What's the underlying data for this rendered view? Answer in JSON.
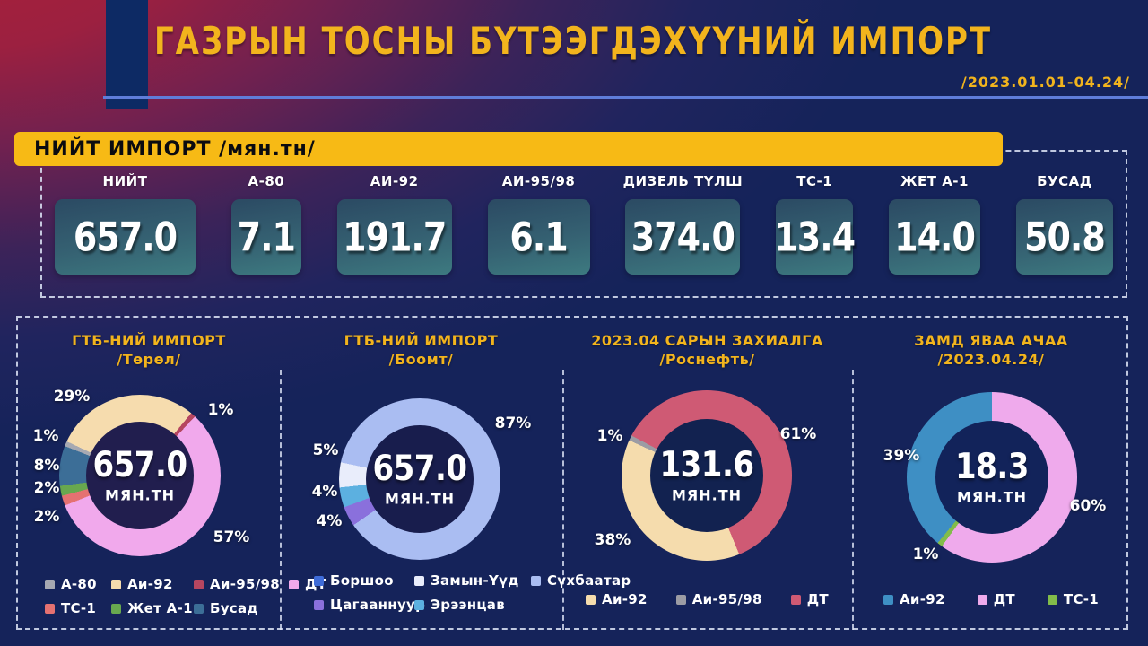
{
  "header": {
    "title": "ГАЗРЫН ТОСНЫ БҮТЭЭГДЭХҮҮНИЙ ИМПОРТ",
    "period": "/2023.01.01-04.24/",
    "accent_color": "#f2b41d"
  },
  "banner": {
    "label": "НИЙТ ИМПОРТ /мян.тн/",
    "background": "#f7ba15"
  },
  "stats": [
    {
      "label": "НИЙТ",
      "value": "657.0"
    },
    {
      "label": "А-80",
      "value": "7.1"
    },
    {
      "label": "АИ-92",
      "value": "191.7"
    },
    {
      "label": "АИ-95/98",
      "value": "6.1"
    },
    {
      "label": "ДИЗЕЛЬ ТҮЛШ",
      "value": "374.0"
    },
    {
      "label": "ТС-1",
      "value": "13.4"
    },
    {
      "label": "ЖЕТ А-1",
      "value": "14.0"
    },
    {
      "label": "БУСАД",
      "value": "50.8"
    }
  ],
  "chart_data": [
    {
      "type": "pie",
      "title": "ГТБ-НИЙ ИМПОРТ",
      "subtitle": "/Төрөл/",
      "center_value": "657.0",
      "center_unit": "МЯН.ТН",
      "start_angle_deg": -65,
      "slices": [
        {
          "label": "Аи-92",
          "pct": 29,
          "color": "#f6dcae"
        },
        {
          "label": "Аи-95/98",
          "pct": 1,
          "color": "#b64660"
        },
        {
          "label": "ДТ",
          "pct": 57,
          "color": "#f1a9ec"
        },
        {
          "label": "ТС-1",
          "pct": 2,
          "color": "#e57171"
        },
        {
          "label": "Жет А-1",
          "pct": 2,
          "color": "#68a84f"
        },
        {
          "label": "Бусад",
          "pct": 8,
          "color": "#3c6e97"
        },
        {
          "label": "А-80",
          "pct": 1,
          "color": "#a7a9b2"
        }
      ],
      "legend": [
        {
          "label": "А-80",
          "color": "#a7a9b2"
        },
        {
          "label": "Аи-92",
          "color": "#f6dcae"
        },
        {
          "label": "Аи-95/98",
          "color": "#b64660"
        },
        {
          "label": "ДТ",
          "color": "#f1a9ec"
        },
        {
          "label": "ТС-1",
          "color": "#e57171"
        },
        {
          "label": "Жет А-1",
          "color": "#68a84f"
        },
        {
          "label": "Бусад",
          "color": "#3c6e97"
        }
      ]
    },
    {
      "type": "pie",
      "title": "ГТБ-НИЙ ИМПОРТ",
      "subtitle": "/Боомт/",
      "center_value": "657.0",
      "center_unit": "МЯН.ТН",
      "start_angle_deg": -78,
      "slices": [
        {
          "label": "Сүхбаатар",
          "pct": 87,
          "color": "#aabdf2"
        },
        {
          "label": "Цагааннуур",
          "pct": 4,
          "color": "#8a70dc"
        },
        {
          "label": "Эрээнцав",
          "pct": 4,
          "color": "#5cb0e0"
        },
        {
          "label": "Замын-Үүд",
          "pct": 5,
          "color": "#e9edfb"
        }
      ],
      "legend": [
        {
          "label": "Боршоо",
          "color": "#3f6cd8"
        },
        {
          "label": "Замын-Үүд",
          "color": "#e9edfb"
        },
        {
          "label": "Сүхбаатар",
          "color": "#aabdf2"
        },
        {
          "label": "Цагааннуур",
          "color": "#8a70dc"
        },
        {
          "label": "Эрээнцав",
          "color": "#5cb0e0"
        }
      ]
    },
    {
      "type": "pie",
      "title": "2023.04 САРЫН ЗАХИАЛГА",
      "subtitle": "/Роснефть/",
      "center_value": "131.6",
      "center_unit": "МЯН.ТН",
      "start_angle_deg": -62,
      "slices": [
        {
          "label": "ДТ",
          "pct": 61,
          "color": "#cf5a74"
        },
        {
          "label": "Аи-92",
          "pct": 38,
          "color": "#f5dcad"
        },
        {
          "label": "Аи-95/98",
          "pct": 1,
          "color": "#9c9ca4"
        }
      ],
      "legend": [
        {
          "label": "Аи-92",
          "color": "#f5dcad"
        },
        {
          "label": "Аи-95/98",
          "color": "#9c9ca4"
        },
        {
          "label": "ДТ",
          "color": "#cf5a74"
        }
      ]
    },
    {
      "type": "pie",
      "title": "ЗАМД ЯВАА АЧАА",
      "subtitle": "/2023.04.24/",
      "center_value": "18.3",
      "center_unit": "МЯН.ТН",
      "start_angle_deg": 0,
      "slices": [
        {
          "label": "ДТ",
          "pct": 60,
          "color": "#efaaec"
        },
        {
          "label": "ТС-1",
          "pct": 1,
          "color": "#82bc4a"
        },
        {
          "label": "Аи-92",
          "pct": 39,
          "color": "#3e8fc4"
        }
      ],
      "legend": [
        {
          "label": "Аи-92",
          "color": "#3e8fc4"
        },
        {
          "label": "ДТ",
          "color": "#efaaec"
        },
        {
          "label": "ТС-1",
          "color": "#82bc4a"
        }
      ]
    }
  ]
}
